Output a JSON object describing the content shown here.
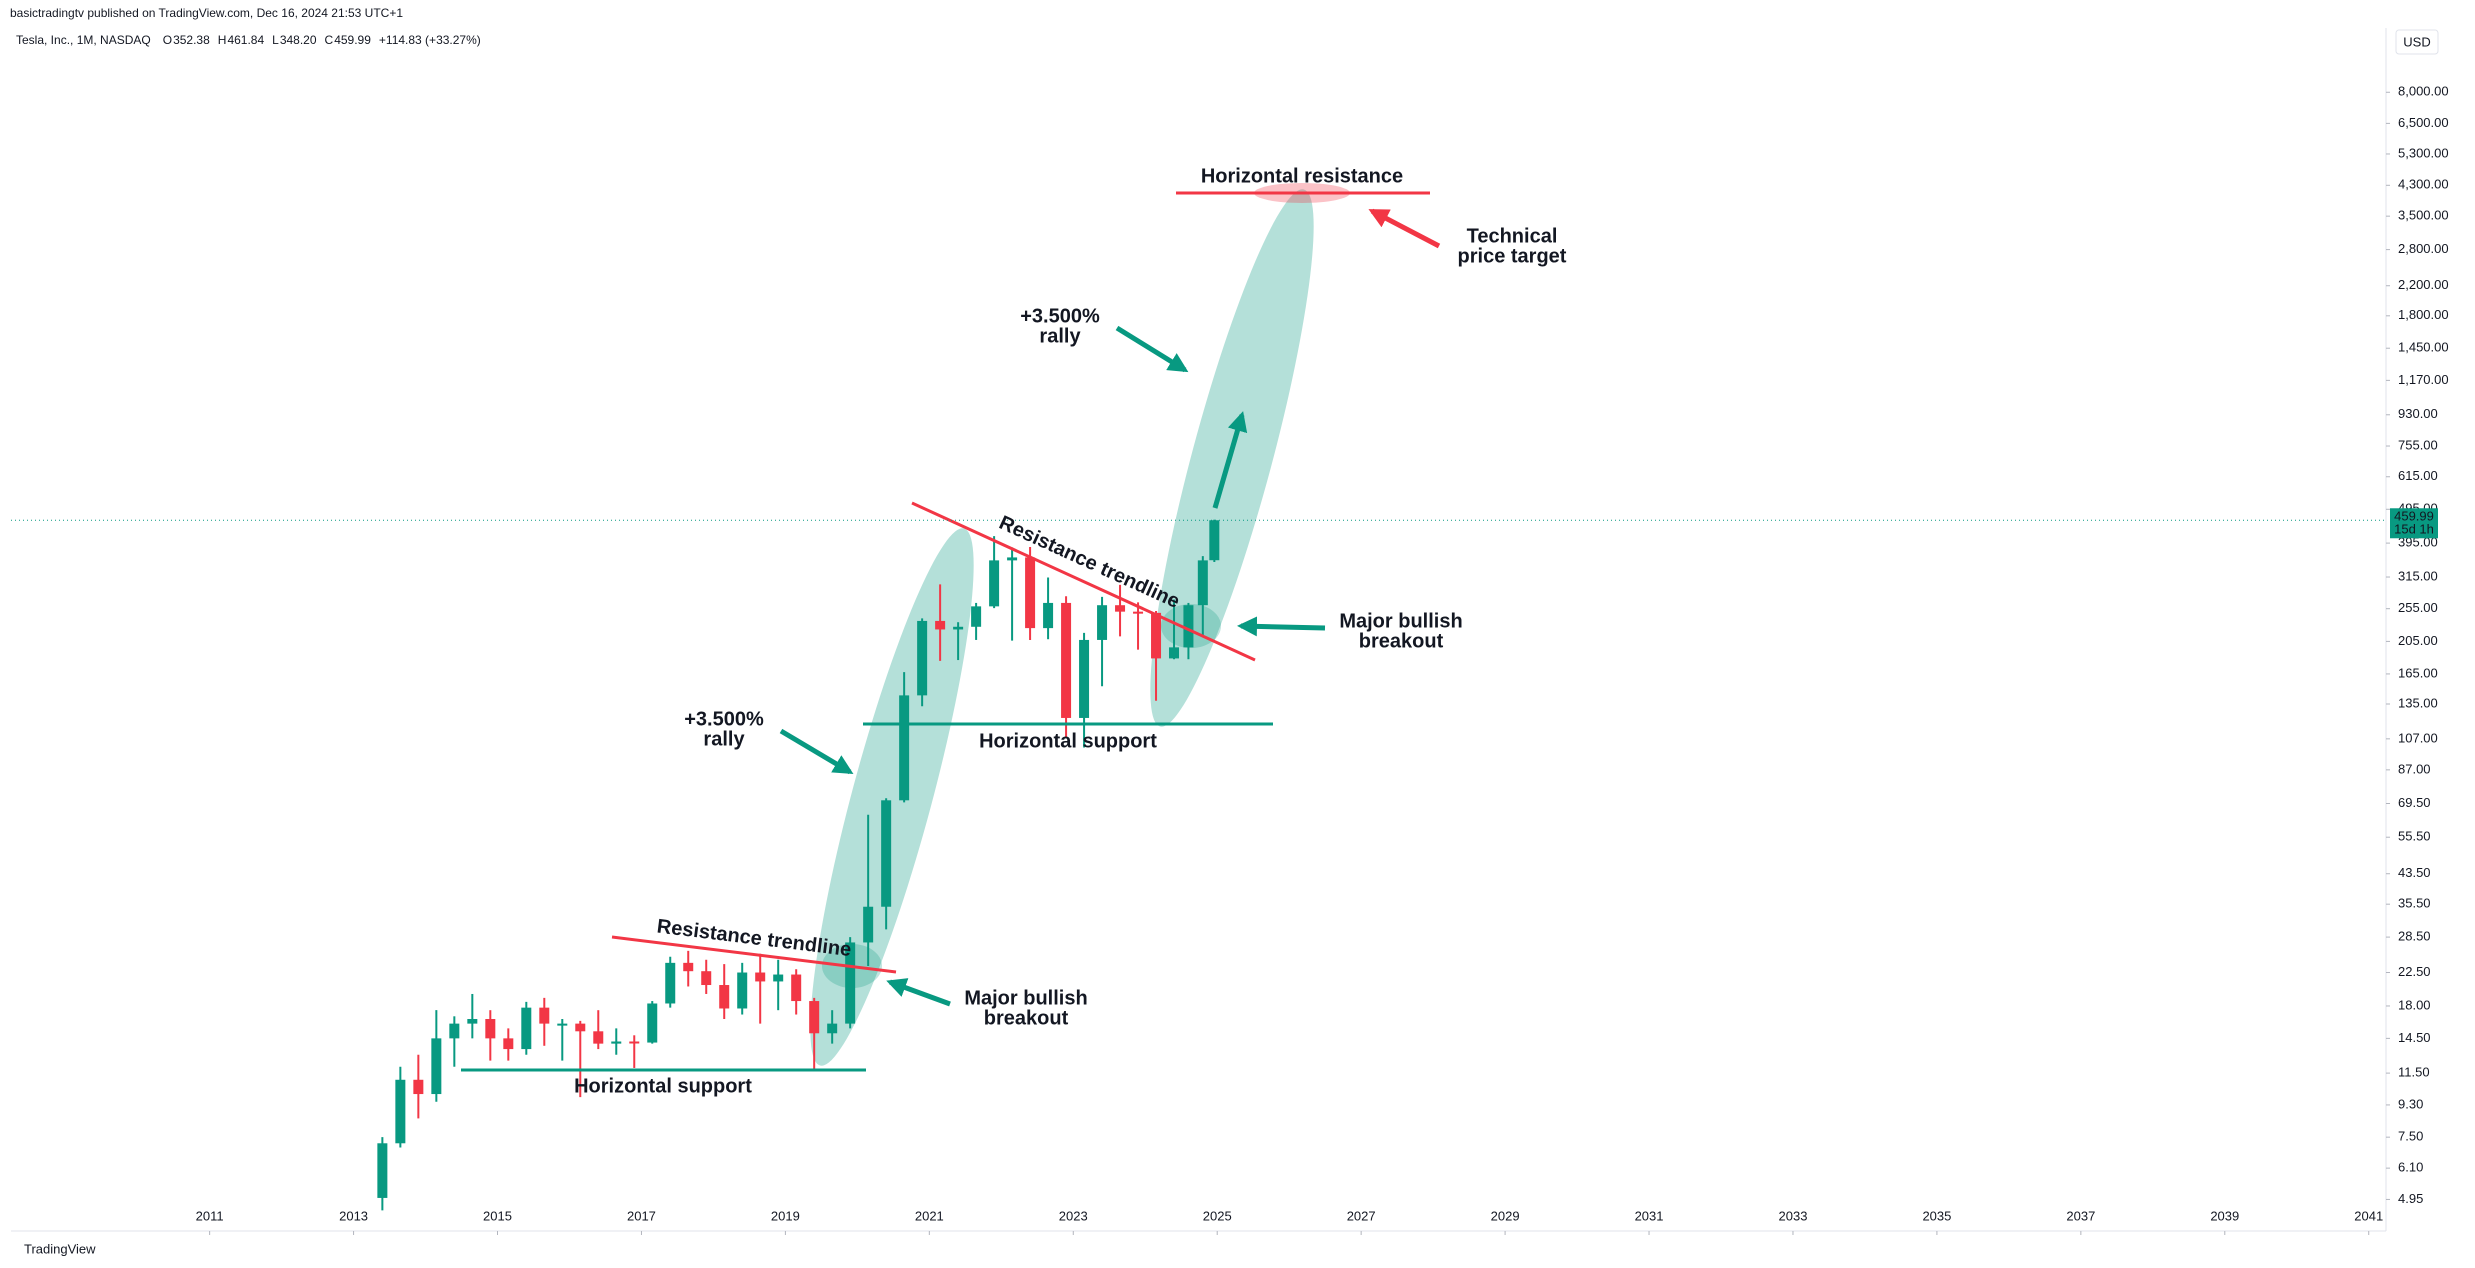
{
  "header": {
    "published": "basictradingtv published on TradingView.com, Dec 16, 2024 21:53 UTC+1",
    "symbol": "Tesla, Inc., 1M, NASDAQ",
    "ohlc": [
      {
        "label": "O",
        "value": "352.38"
      },
      {
        "label": "H",
        "value": "461.84"
      },
      {
        "label": "L",
        "value": "348.20"
      },
      {
        "label": "C",
        "value": "459.99"
      }
    ],
    "change": "+114.83 (+33.27%)",
    "currency": "USD"
  },
  "footer": "TradingView",
  "chart_data": {
    "type": "candlestick",
    "log_scale": true,
    "up_color": "#089981",
    "down_color": "#f23645",
    "xlim": [
      2008.24,
      2041.24
    ],
    "xticks": [
      2011,
      2013,
      2015,
      2017,
      2019,
      2021,
      2023,
      2025,
      2027,
      2029,
      2031,
      2033,
      2035,
      2037,
      2039,
      2041
    ],
    "ylim": [
      4.01,
      11960
    ],
    "yticks": [
      {
        "value": 4.95,
        "label": "4.95"
      },
      {
        "value": 6.1,
        "label": "6.10"
      },
      {
        "value": 7.5,
        "label": "7.50"
      },
      {
        "value": 9.3,
        "label": "9.30"
      },
      {
        "value": 11.5,
        "label": "11.50"
      },
      {
        "value": 14.5,
        "label": "14.50"
      },
      {
        "value": 18,
        "label": "18.00"
      },
      {
        "value": 22.5,
        "label": "22.50"
      },
      {
        "value": 28.5,
        "label": "28.50"
      },
      {
        "value": 35.5,
        "label": "35.50"
      },
      {
        "value": 43.5,
        "label": "43.50"
      },
      {
        "value": 55.5,
        "label": "55.50"
      },
      {
        "value": 69.5,
        "label": "69.50"
      },
      {
        "value": 87,
        "label": "87.00"
      },
      {
        "value": 107,
        "label": "107.00"
      },
      {
        "value": 135,
        "label": "135.00"
      },
      {
        "value": 165,
        "label": "165.00"
      },
      {
        "value": 205,
        "label": "205.00"
      },
      {
        "value": 255,
        "label": "255.00"
      },
      {
        "value": 315,
        "label": "315.00"
      },
      {
        "value": 395,
        "label": "395.00"
      },
      {
        "value": 495,
        "label": "495.00"
      },
      {
        "value": 615,
        "label": "615.00"
      },
      {
        "value": 755,
        "label": "755.00"
      },
      {
        "value": 930,
        "label": "930.00"
      },
      {
        "value": 1170,
        "label": "1,170.00"
      },
      {
        "value": 1450,
        "label": "1,450.00"
      },
      {
        "value": 1800,
        "label": "1,800.00"
      },
      {
        "value": 2200,
        "label": "2,200.00"
      },
      {
        "value": 2800,
        "label": "2,800.00"
      },
      {
        "value": 3500,
        "label": "3,500.00"
      },
      {
        "value": 4300,
        "label": "4,300.00"
      },
      {
        "value": 5300,
        "label": "5,300.00"
      },
      {
        "value": 6500,
        "label": "6,500.00"
      },
      {
        "value": 8000,
        "label": "8,000.00"
      }
    ],
    "last_price": {
      "value": 459.99,
      "label": "459.99",
      "countdown": "15d 1h"
    },
    "candles": [
      {
        "x": 2013.4,
        "open": 5.0,
        "high": 7.5,
        "low": 4.6,
        "close": 7.2
      },
      {
        "x": 2013.65,
        "open": 7.2,
        "high": 12.0,
        "low": 7.0,
        "close": 11.0
      },
      {
        "x": 2013.9,
        "open": 11.0,
        "high": 13.0,
        "low": 8.5,
        "close": 10.0
      },
      {
        "x": 2014.15,
        "open": 10.0,
        "high": 17.5,
        "low": 9.5,
        "close": 14.5
      },
      {
        "x": 2014.4,
        "open": 14.5,
        "high": 16.8,
        "low": 12.0,
        "close": 16.0
      },
      {
        "x": 2014.65,
        "open": 16.0,
        "high": 19.5,
        "low": 14.5,
        "close": 16.5
      },
      {
        "x": 2014.9,
        "open": 16.5,
        "high": 17.5,
        "low": 12.5,
        "close": 14.5
      },
      {
        "x": 2015.15,
        "open": 14.5,
        "high": 15.5,
        "low": 12.5,
        "close": 13.5
      },
      {
        "x": 2015.4,
        "open": 13.5,
        "high": 18.5,
        "low": 13.0,
        "close": 17.8
      },
      {
        "x": 2015.65,
        "open": 17.8,
        "high": 19.0,
        "low": 13.8,
        "close": 16.0
      },
      {
        "x": 2015.9,
        "open": 16.0,
        "high": 16.5,
        "low": 12.5,
        "close": 16.0
      },
      {
        "x": 2016.15,
        "open": 16.0,
        "high": 16.3,
        "low": 9.8,
        "close": 15.2
      },
      {
        "x": 2016.4,
        "open": 15.2,
        "high": 17.5,
        "low": 13.5,
        "close": 14.0
      },
      {
        "x": 2016.65,
        "open": 14.0,
        "high": 15.5,
        "low": 13.0,
        "close": 14.2
      },
      {
        "x": 2016.9,
        "open": 14.2,
        "high": 14.8,
        "low": 11.9,
        "close": 14.1
      },
      {
        "x": 2017.15,
        "open": 14.1,
        "high": 18.6,
        "low": 14.0,
        "close": 18.3
      },
      {
        "x": 2017.4,
        "open": 18.3,
        "high": 25.0,
        "low": 17.8,
        "close": 24.0
      },
      {
        "x": 2017.65,
        "open": 24.0,
        "high": 26.0,
        "low": 20.5,
        "close": 22.7
      },
      {
        "x": 2017.9,
        "open": 22.7,
        "high": 24.5,
        "low": 19.5,
        "close": 20.7
      },
      {
        "x": 2018.15,
        "open": 20.7,
        "high": 23.8,
        "low": 16.5,
        "close": 17.7
      },
      {
        "x": 2018.4,
        "open": 17.7,
        "high": 24.0,
        "low": 17.0,
        "close": 22.5
      },
      {
        "x": 2018.65,
        "open": 22.5,
        "high": 25.5,
        "low": 16.0,
        "close": 21.2
      },
      {
        "x": 2018.9,
        "open": 21.2,
        "high": 24.5,
        "low": 17.5,
        "close": 22.2
      },
      {
        "x": 2019.15,
        "open": 22.2,
        "high": 23.0,
        "low": 17.0,
        "close": 18.6
      },
      {
        "x": 2019.4,
        "open": 18.6,
        "high": 19.0,
        "low": 11.8,
        "close": 15.0
      },
      {
        "x": 2019.65,
        "open": 15.0,
        "high": 17.5,
        "low": 14.0,
        "close": 16.0
      },
      {
        "x": 2019.9,
        "open": 16.0,
        "high": 28.5,
        "low": 15.5,
        "close": 27.5
      },
      {
        "x": 2020.15,
        "open": 27.5,
        "high": 64.5,
        "low": 23.5,
        "close": 34.9
      },
      {
        "x": 2020.4,
        "open": 34.9,
        "high": 72.0,
        "low": 30.0,
        "close": 71.0
      },
      {
        "x": 2020.65,
        "open": 71.0,
        "high": 167.0,
        "low": 70.0,
        "close": 143.0
      },
      {
        "x": 2020.9,
        "open": 143.0,
        "high": 239.0,
        "low": 133.0,
        "close": 235.0
      },
      {
        "x": 2021.15,
        "open": 235.0,
        "high": 300.0,
        "low": 180.0,
        "close": 222.0
      },
      {
        "x": 2021.4,
        "open": 222.0,
        "high": 233.0,
        "low": 181.0,
        "close": 226.0
      },
      {
        "x": 2021.65,
        "open": 226.0,
        "high": 265.0,
        "low": 207.0,
        "close": 259.0
      },
      {
        "x": 2021.9,
        "open": 259.0,
        "high": 414.0,
        "low": 256.0,
        "close": 352.0
      },
      {
        "x": 2022.15,
        "open": 352.0,
        "high": 384.0,
        "low": 206.0,
        "close": 359.0
      },
      {
        "x": 2022.4,
        "open": 359.0,
        "high": 385.0,
        "low": 207.0,
        "close": 224.0
      },
      {
        "x": 2022.65,
        "open": 224.0,
        "high": 314.0,
        "low": 208.0,
        "close": 265.0
      },
      {
        "x": 2022.9,
        "open": 265.0,
        "high": 277.0,
        "low": 108.0,
        "close": 123.0
      },
      {
        "x": 2023.15,
        "open": 123.0,
        "high": 217.0,
        "low": 101.0,
        "close": 207.0
      },
      {
        "x": 2023.4,
        "open": 207.0,
        "high": 276.0,
        "low": 152.0,
        "close": 261.0
      },
      {
        "x": 2023.65,
        "open": 261.0,
        "high": 299.0,
        "low": 212.0,
        "close": 250.0
      },
      {
        "x": 2023.9,
        "open": 250.0,
        "high": 266.0,
        "low": 194.0,
        "close": 248.0
      },
      {
        "x": 2024.15,
        "open": 248.0,
        "high": 251.0,
        "low": 138.0,
        "close": 183.0
      },
      {
        "x": 2024.4,
        "open": 183.0,
        "high": 271.0,
        "low": 182.0,
        "close": 197.0
      },
      {
        "x": 2024.6,
        "open": 197.0,
        "high": 265.0,
        "low": 182.0,
        "close": 261.0
      },
      {
        "x": 2024.8,
        "open": 261.0,
        "high": 362.0,
        "low": 212.0,
        "close": 352.0
      },
      {
        "x": 2024.96,
        "open": 352.38,
        "high": 461.84,
        "low": 348.2,
        "close": 459.99
      }
    ],
    "annotations": [
      {
        "lines": [
          "Horizontal resistance"
        ]
      },
      {
        "lines": [
          "Technical",
          "price target"
        ]
      },
      {
        "lines": [
          "+3.500%",
          "rally"
        ]
      },
      {
        "lines": [
          "Resistance trendline"
        ]
      },
      {
        "lines": [
          "Major bullish",
          "breakout"
        ]
      },
      {
        "lines": [
          "Horizontal support"
        ]
      },
      {
        "lines": [
          "+3.500%",
          "rally"
        ]
      },
      {
        "lines": [
          "Resistance trendline"
        ]
      },
      {
        "lines": [
          "Major bullish",
          "breakout"
        ]
      },
      {
        "lines": [
          "Horizontal support"
        ]
      }
    ]
  }
}
